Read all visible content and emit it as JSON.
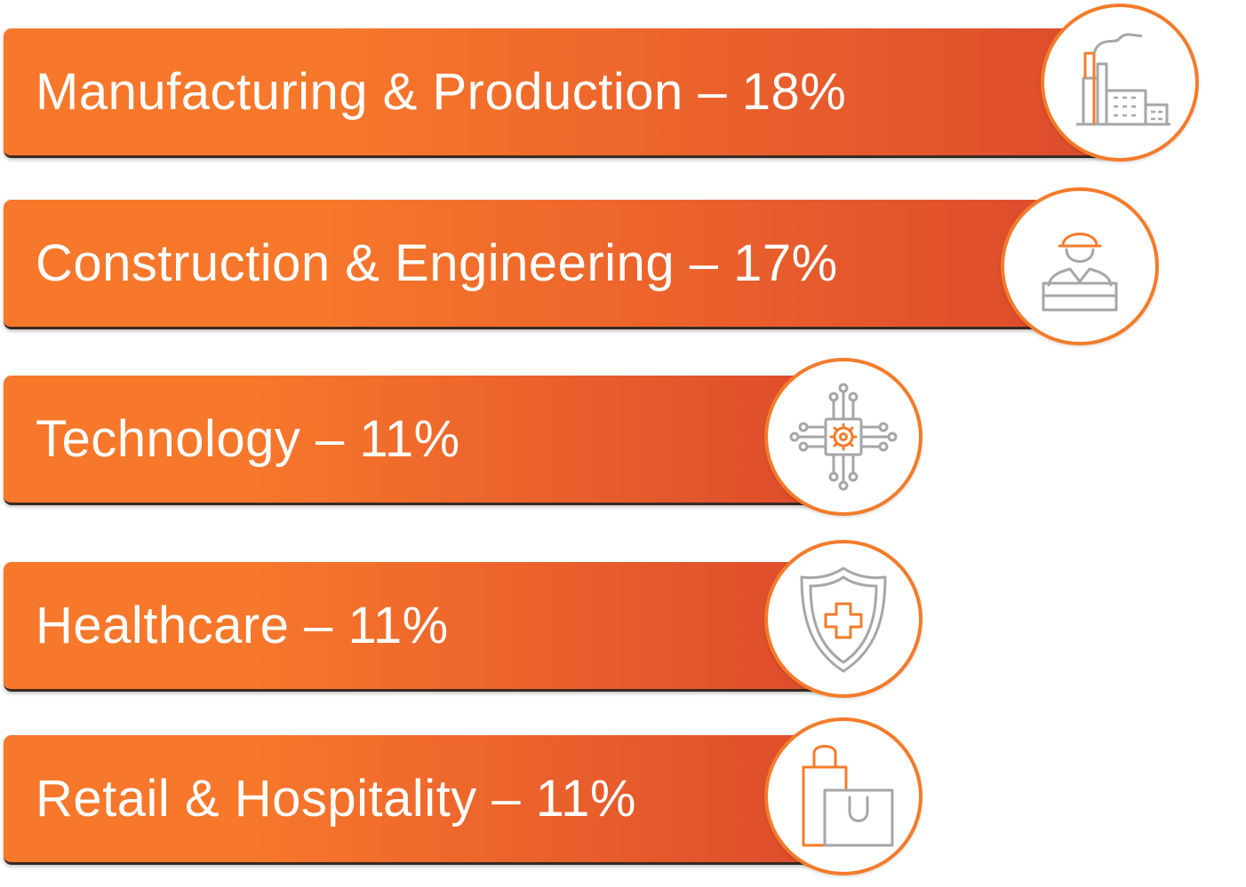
{
  "colors": {
    "bar_start": "#f7772b",
    "bar_end": "#dd4b2c",
    "icon_gray": "#a6a6a6",
    "icon_orange": "#f47b2a",
    "badge_border": "#f47b2a"
  },
  "chart_data": {
    "type": "bar",
    "orientation": "horizontal",
    "categories": [
      "Manufacturing & Production",
      "Construction & Engineering",
      "Technology",
      "Healthcare",
      "Retail & Hospitality"
    ],
    "values": [
      18,
      17,
      11,
      11,
      11
    ],
    "unit": "%",
    "labels": [
      "Manufacturing & Production – 18%",
      "Construction & Engineering – 17%",
      "Technology – 11%",
      "Healthcare – 11%",
      "Retail & Hospitality – 11%"
    ],
    "icons": [
      "factory-icon",
      "engineer-icon",
      "chip-icon",
      "medical-shield-icon",
      "shopping-bags-icon"
    ],
    "title": "",
    "xlabel": "",
    "ylabel": "",
    "grid": false,
    "legend": "none"
  }
}
